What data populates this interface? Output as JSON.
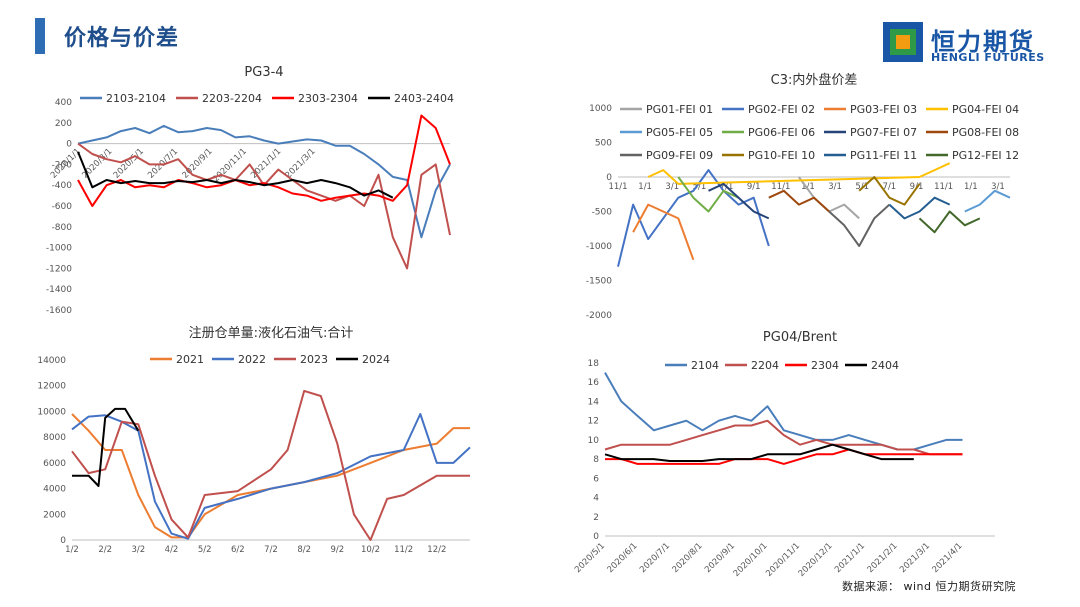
{
  "header": {
    "title": "价格与价差"
  },
  "logo": {
    "cn": "恒力期货",
    "en": "HENGLI FUTURES",
    "colors": [
      "#1a56a6",
      "#2e9a47",
      "#f39c12"
    ]
  },
  "source_note": "数据来源： wind 恒力期货研究院",
  "chart_data": [
    {
      "id": "pg34",
      "type": "line",
      "title": "PG3-4",
      "legend_position": "top",
      "ylim": [
        -1600,
        400
      ],
      "yticks": [
        "400",
        "200",
        "0",
        "-200",
        "-400",
        "-600",
        "-800",
        "-1000",
        "-1200",
        "-1400",
        "-1600"
      ],
      "ytick_values": [
        400,
        200,
        0,
        -200,
        -400,
        -600,
        -800,
        -1000,
        -1200,
        -1400,
        -1600
      ],
      "xlim": [
        0,
        13
      ],
      "xticks": [
        "2020/1/1",
        "2020/3/1",
        "2020/5/1",
        "2020/7/1",
        "2020/9/1",
        "2020/11/1",
        "2021/1/1",
        "2021/3/1"
      ],
      "xtick_values": [
        0.1,
        1.2,
        2.3,
        3.5,
        4.7,
        5.9,
        7.1,
        8.3
      ],
      "series": [
        {
          "name": "2103-2104",
          "color": "#4a7ebb",
          "x": [
            0,
            0.5,
            1,
            1.5,
            2,
            2.5,
            3,
            3.5,
            4,
            4.5,
            5,
            5.5,
            6,
            6.5,
            7,
            7.5,
            8,
            8.5,
            9,
            9.5,
            10,
            10.5,
            11,
            11.5,
            12,
            12.5,
            13
          ],
          "y": [
            0,
            30,
            60,
            120,
            150,
            100,
            170,
            110,
            120,
            150,
            130,
            60,
            70,
            30,
            0,
            20,
            40,
            30,
            -20,
            -20,
            -100,
            -200,
            -320,
            -350,
            -900,
            -450,
            -200
          ]
        },
        {
          "name": "2203-2204",
          "color": "#c0504d",
          "x": [
            0,
            0.5,
            1,
            1.5,
            2,
            2.5,
            3,
            3.5,
            4,
            4.5,
            5,
            5.5,
            6,
            6.5,
            7,
            7.5,
            8,
            8.5,
            9,
            9.5,
            10,
            10.5,
            11,
            11.5,
            12,
            12.5,
            13
          ],
          "y": [
            0,
            -100,
            -150,
            -180,
            -120,
            -200,
            -200,
            -150,
            -300,
            -350,
            -300,
            -350,
            -200,
            -400,
            -250,
            -350,
            -450,
            -500,
            -550,
            -500,
            -600,
            -300,
            -900,
            -1200,
            -300,
            -200,
            -880
          ]
        },
        {
          "name": "2303-2304",
          "color": "#ff0000",
          "x": [
            0,
            0.5,
            1,
            1.5,
            2,
            2.5,
            3,
            3.5,
            4,
            4.5,
            5,
            5.5,
            6,
            6.5,
            7,
            7.5,
            8,
            8.5,
            9,
            9.5,
            10,
            10.5,
            11,
            11.5,
            12,
            12.5,
            13
          ],
          "y": [
            -350,
            -600,
            -400,
            -350,
            -420,
            -400,
            -420,
            -350,
            -380,
            -420,
            -400,
            -350,
            -400,
            -380,
            -420,
            -480,
            -500,
            -550,
            -520,
            -500,
            -480,
            -500,
            -550,
            -400,
            270,
            150,
            -200
          ]
        },
        {
          "name": "2403-2404",
          "color": "#000000",
          "x": [
            0,
            0.5,
            1,
            1.5,
            2,
            2.5,
            3,
            3.5,
            4,
            4.5,
            5,
            5.5,
            6,
            6.5,
            7,
            7.5,
            8,
            8.5,
            9,
            9.5,
            10,
            10.5,
            11
          ],
          "y": [
            -80,
            -420,
            -350,
            -380,
            -360,
            -380,
            -380,
            -360,
            -370,
            -350,
            -380,
            -350,
            -370,
            -400,
            -380,
            -350,
            -380,
            -350,
            -380,
            -420,
            -500,
            -450,
            -520
          ]
        }
      ]
    },
    {
      "id": "c3",
      "type": "line",
      "title": "C3:内外盘价差",
      "legend_position": "top",
      "ylim": [
        -2000,
        1000
      ],
      "yticks": [
        "1000",
        "500",
        "0",
        "-500",
        "-1000",
        "-1500",
        "-2000"
      ],
      "ytick_values": [
        1000,
        500,
        0,
        -500,
        -1000,
        -1500,
        -2000
      ],
      "xlim": [
        0,
        13
      ],
      "xticks": [
        "11/1",
        "1/1",
        "3/1",
        "5/1",
        "7/1",
        "9/1",
        "11/1",
        "1/1",
        "3/1",
        "5/1",
        "7/1",
        "9/1",
        "11/1",
        "1/1",
        "3/1"
      ],
      "xtick_values": [
        0,
        0.9,
        1.8,
        2.7,
        3.6,
        4.5,
        5.4,
        6.3,
        7.2,
        8.1,
        9.0,
        9.9,
        10.8,
        11.7,
        12.6
      ],
      "series": [
        {
          "name": "PG01-FEI 01",
          "color": "#a5a5a5",
          "x": [
            6,
            6.5,
            7,
            7.5,
            8
          ],
          "y": [
            0,
            -300,
            -500,
            -400,
            -600
          ]
        },
        {
          "name": "PG02-FEI 02",
          "color": "#4472c4",
          "x": [
            0,
            0.5,
            1,
            1.5,
            2,
            2.5,
            3,
            3.5,
            4,
            4.5,
            5
          ],
          "y": [
            -1300,
            -400,
            -900,
            -600,
            -300,
            -200,
            100,
            -200,
            -400,
            -300,
            -1000
          ]
        },
        {
          "name": "PG03-FEI 03",
          "color": "#ed7d31",
          "x": [
            0.5,
            1,
            1.5,
            2,
            2.5
          ],
          "y": [
            -800,
            -400,
            -500,
            -600,
            -1200
          ]
        },
        {
          "name": "PG04-FEI 04",
          "color": "#ffc000",
          "x": [
            1,
            1.5,
            2,
            10,
            10.5,
            11
          ],
          "y": [
            0,
            100,
            -100,
            0,
            100,
            200
          ]
        },
        {
          "name": "PG05-FEI 05",
          "color": "#5b9bd5",
          "x": [
            11.5,
            12,
            12.5,
            13
          ],
          "y": [
            -500,
            -400,
            -200,
            -300
          ]
        },
        {
          "name": "PG06-FEI 06",
          "color": "#70ad47",
          "x": [
            2,
            2.5,
            3,
            3.5,
            4
          ],
          "y": [
            0,
            -300,
            -500,
            -200,
            -300
          ]
        },
        {
          "name": "PG07-FEI 07",
          "color": "#264478",
          "x": [
            3,
            3.5,
            4,
            4.5,
            5
          ],
          "y": [
            -200,
            -100,
            -300,
            -500,
            -600
          ]
        },
        {
          "name": "PG08-FEI 08",
          "color": "#9e480e",
          "x": [
            5,
            5.5,
            6,
            6.5,
            7
          ],
          "y": [
            -300,
            -200,
            -400,
            -300,
            -500
          ]
        },
        {
          "name": "PG09-FEI 09",
          "color": "#636363",
          "x": [
            7,
            7.5,
            8,
            8.5,
            9
          ],
          "y": [
            -500,
            -700,
            -1000,
            -600,
            -400
          ]
        },
        {
          "name": "PG10-FEI 10",
          "color": "#997300",
          "x": [
            8,
            8.5,
            9,
            9.5,
            10
          ],
          "y": [
            -200,
            0,
            -300,
            -400,
            -100
          ]
        },
        {
          "name": "PG11-FEI 11",
          "color": "#255e91",
          "x": [
            9,
            9.5,
            10,
            10.5,
            11
          ],
          "y": [
            -400,
            -600,
            -500,
            -300,
            -400
          ]
        },
        {
          "name": "PG12-FEI 12",
          "color": "#43682b",
          "x": [
            10,
            10.5,
            11,
            11.5,
            12
          ],
          "y": [
            -600,
            -800,
            -500,
            -700,
            -600
          ]
        }
      ]
    },
    {
      "id": "warehouse",
      "type": "line",
      "title": "注册仓单量:液化石油气:合计",
      "legend_position": "top",
      "ylim": [
        0,
        14000
      ],
      "yticks": [
        "14000",
        "12000",
        "10000",
        "8000",
        "6000",
        "4000",
        "2000",
        "0"
      ],
      "ytick_values": [
        14000,
        12000,
        10000,
        8000,
        6000,
        4000,
        2000,
        0
      ],
      "xlim": [
        0,
        12
      ],
      "xticks": [
        "1/2",
        "2/2",
        "3/2",
        "4/2",
        "5/2",
        "6/2",
        "7/2",
        "8/2",
        "9/2",
        "10/2",
        "11/2",
        "12/2"
      ],
      "xtick_values": [
        0,
        1,
        2,
        3,
        4,
        5,
        6,
        7,
        8,
        9,
        10,
        11
      ],
      "series": [
        {
          "name": "2021",
          "color": "#ed7d31",
          "x": [
            0,
            0.5,
            1,
            1.5,
            2,
            2.5,
            3,
            3.5,
            4,
            5,
            6,
            7,
            8,
            9,
            10,
            11,
            11.5,
            12
          ],
          "y": [
            9800,
            8500,
            7000,
            7000,
            3500,
            1000,
            200,
            200,
            2000,
            3500,
            4000,
            4500,
            5000,
            6000,
            7000,
            7500,
            8700,
            8700
          ]
        },
        {
          "name": "2022",
          "color": "#4472c4",
          "x": [
            0,
            0.5,
            1,
            1.5,
            2,
            2.5,
            3,
            3.5,
            4,
            5,
            6,
            7,
            8,
            9,
            10,
            10.5,
            11,
            11.5,
            12
          ],
          "y": [
            8600,
            9600,
            9700,
            9200,
            8500,
            3000,
            500,
            100,
            2500,
            3200,
            4000,
            4500,
            5200,
            6500,
            7000,
            9800,
            6000,
            6000,
            7200
          ]
        },
        {
          "name": "2023",
          "color": "#c0504d",
          "x": [
            0,
            0.5,
            1,
            1.5,
            2,
            2.5,
            3,
            3.5,
            4,
            5,
            6,
            6.5,
            7,
            7.5,
            8,
            8.5,
            9,
            9.5,
            10,
            11,
            12
          ],
          "y": [
            6900,
            5200,
            5500,
            9200,
            9000,
            5000,
            1600,
            200,
            3500,
            3800,
            5500,
            7000,
            11600,
            11200,
            7500,
            2000,
            0,
            3200,
            3500,
            5000,
            5000
          ]
        },
        {
          "name": "2024",
          "color": "#000000",
          "x": [
            0,
            0.5,
            0.8,
            1,
            1.3,
            1.6,
            2
          ],
          "y": [
            5000,
            5000,
            4200,
            9500,
            10200,
            10200,
            8500
          ]
        }
      ]
    },
    {
      "id": "pg04brent",
      "type": "line",
      "title": "PG04/Brent",
      "legend_position": "top",
      "ylim": [
        0,
        18
      ],
      "yticks": [
        "18",
        "16",
        "14",
        "12",
        "10",
        "8",
        "6",
        "4",
        "2",
        "0"
      ],
      "ytick_values": [
        18,
        16,
        14,
        12,
        10,
        8,
        6,
        4,
        2,
        0
      ],
      "xlim": [
        0,
        12
      ],
      "xticks": [
        "2020/5/1",
        "2020/6/1",
        "2020/7/1",
        "2020/8/1",
        "2020/9/1",
        "2020/10/1",
        "2020/11/1",
        "2020/12/1",
        "2021/1/1",
        "2021/2/1",
        "2021/3/1",
        "2021/4/1"
      ],
      "xtick_values": [
        0,
        1,
        2,
        3,
        4,
        5,
        6,
        7,
        8,
        9,
        10,
        11
      ],
      "series": [
        {
          "name": "2104",
          "color": "#4a7ebb",
          "x": [
            0,
            0.5,
            1,
            1.5,
            2,
            2.5,
            3,
            3.5,
            4,
            4.5,
            5,
            5.5,
            6,
            6.5,
            7,
            7.5,
            8,
            8.5,
            9,
            9.5,
            10,
            10.5,
            11
          ],
          "y": [
            17,
            14,
            12.5,
            11,
            11.5,
            12,
            11,
            12,
            12.5,
            12,
            13.5,
            11,
            10.5,
            10,
            10,
            10.5,
            10,
            9.5,
            9,
            9,
            9.5,
            10,
            10
          ]
        },
        {
          "name": "2204",
          "color": "#c0504d",
          "x": [
            0,
            0.5,
            1,
            1.5,
            2,
            2.5,
            3,
            3.5,
            4,
            4.5,
            5,
            5.5,
            6,
            6.5,
            7,
            7.5,
            8,
            8.5,
            9,
            9.5,
            10,
            10.5,
            11
          ],
          "y": [
            9,
            9.5,
            9.5,
            9.5,
            9.5,
            10,
            10.5,
            11,
            11.5,
            11.5,
            12,
            10.5,
            9.5,
            10,
            9.5,
            9.5,
            9.5,
            9.5,
            9,
            9,
            8.5,
            8.5,
            8.5
          ]
        },
        {
          "name": "2304",
          "color": "#ff0000",
          "x": [
            0,
            0.5,
            1,
            1.5,
            2,
            2.5,
            3,
            3.5,
            4,
            4.5,
            5,
            5.5,
            6,
            6.5,
            7,
            7.5,
            8,
            8.5,
            9,
            9.5,
            10,
            10.5,
            11
          ],
          "y": [
            8,
            8,
            7.5,
            7.5,
            7.5,
            7.5,
            7.5,
            7.5,
            8,
            8,
            8,
            7.5,
            8,
            8.5,
            8.5,
            9,
            8.5,
            8.5,
            8.5,
            8.5,
            8.5,
            8.5,
            8.5
          ]
        },
        {
          "name": "2404",
          "color": "#000000",
          "x": [
            0,
            0.5,
            1,
            1.5,
            2,
            2.5,
            3,
            3.5,
            4,
            4.5,
            5,
            5.5,
            6,
            6.5,
            7,
            7.5,
            8,
            8.5,
            9,
            9.5
          ],
          "y": [
            8.5,
            8,
            8,
            8,
            7.8,
            7.8,
            7.8,
            8,
            8,
            8,
            8.5,
            8.5,
            8.5,
            9,
            9.5,
            9,
            8.5,
            8,
            8,
            8
          ]
        }
      ]
    }
  ]
}
